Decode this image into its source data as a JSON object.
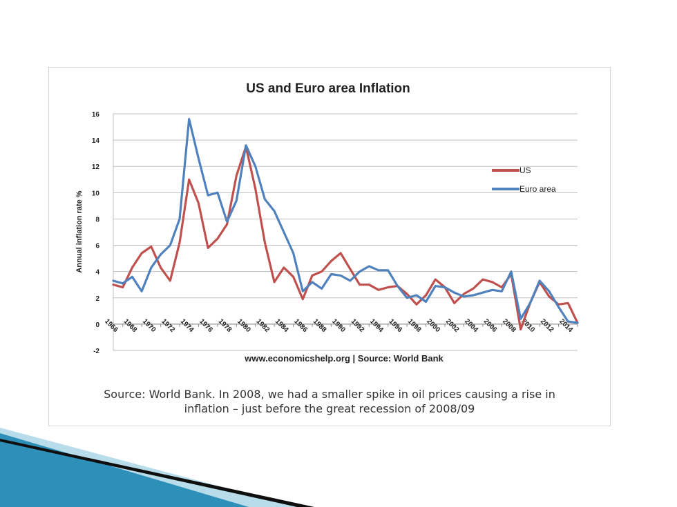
{
  "colors": {
    "us": "#c0504d",
    "euro": "#4f81bd",
    "grid": "#bfbfbf",
    "deco_dark": "#0f0f0f",
    "deco_blue": "#2e8fb8",
    "deco_light": "#b9dcea"
  },
  "caption": {
    "line1": "Source: World Bank. In 2008, we had a smaller spike in oil prices causing a rise in",
    "line2": "inflation – just before the great recession of 2008/09"
  },
  "chart_data": {
    "type": "line",
    "title": "US and Euro area Inflation",
    "xlabel": "www.economicshelp.org | Source: World Bank",
    "ylabel": "Annual inflation rate %",
    "ylim": [
      -2,
      16
    ],
    "yticks": [
      -2,
      0,
      2,
      4,
      6,
      8,
      10,
      12,
      14,
      16
    ],
    "grid": "horizontal",
    "legend_position": "right",
    "x": [
      1966,
      1967,
      1968,
      1969,
      1970,
      1971,
      1972,
      1973,
      1974,
      1975,
      1976,
      1977,
      1978,
      1979,
      1980,
      1981,
      1982,
      1983,
      1984,
      1985,
      1986,
      1987,
      1988,
      1989,
      1990,
      1991,
      1992,
      1993,
      1994,
      1995,
      1996,
      1997,
      1998,
      1999,
      2000,
      2001,
      2002,
      2003,
      2004,
      2005,
      2006,
      2007,
      2008,
      2009,
      2010,
      2011,
      2012,
      2013,
      2014,
      2015
    ],
    "xticks": [
      "1966",
      "1968",
      "1970",
      "1972",
      "1974",
      "1976",
      "1978",
      "1980",
      "1982",
      "1984",
      "1986",
      "1988",
      "1990",
      "1992",
      "1994",
      "1996",
      "1998",
      "2000",
      "2002",
      "2004",
      "2006",
      "2008",
      "2010",
      "2012",
      "2014"
    ],
    "series": [
      {
        "name": "US",
        "color": "#c0504d",
        "values": [
          3.0,
          2.8,
          4.3,
          5.4,
          5.9,
          4.3,
          3.3,
          6.2,
          11.0,
          9.2,
          5.8,
          6.5,
          7.6,
          11.3,
          13.5,
          10.3,
          6.2,
          3.2,
          4.3,
          3.6,
          1.9,
          3.7,
          4.0,
          4.8,
          5.4,
          4.2,
          3.0,
          3.0,
          2.6,
          2.8,
          2.9,
          2.3,
          1.5,
          2.2,
          3.4,
          2.8,
          1.6,
          2.3,
          2.7,
          3.4,
          3.2,
          2.8,
          3.8,
          -0.4,
          1.6,
          3.2,
          2.1,
          1.5,
          1.6,
          0.1
        ]
      },
      {
        "name": "Euro area",
        "color": "#4f81bd",
        "values": [
          3.3,
          3.1,
          3.6,
          2.5,
          4.3,
          5.3,
          6.0,
          8.0,
          15.6,
          12.6,
          9.8,
          10.0,
          7.8,
          9.4,
          13.6,
          12.0,
          9.5,
          8.6,
          7.0,
          5.4,
          2.5,
          3.2,
          2.7,
          3.8,
          3.7,
          3.3,
          4.0,
          4.4,
          4.1,
          4.1,
          2.9,
          2.0,
          2.2,
          1.7,
          2.9,
          2.8,
          2.4,
          2.1,
          2.2,
          2.4,
          2.6,
          2.5,
          4.0,
          0.4,
          1.6,
          3.3,
          2.5,
          1.3,
          0.2,
          0.1
        ]
      }
    ]
  }
}
